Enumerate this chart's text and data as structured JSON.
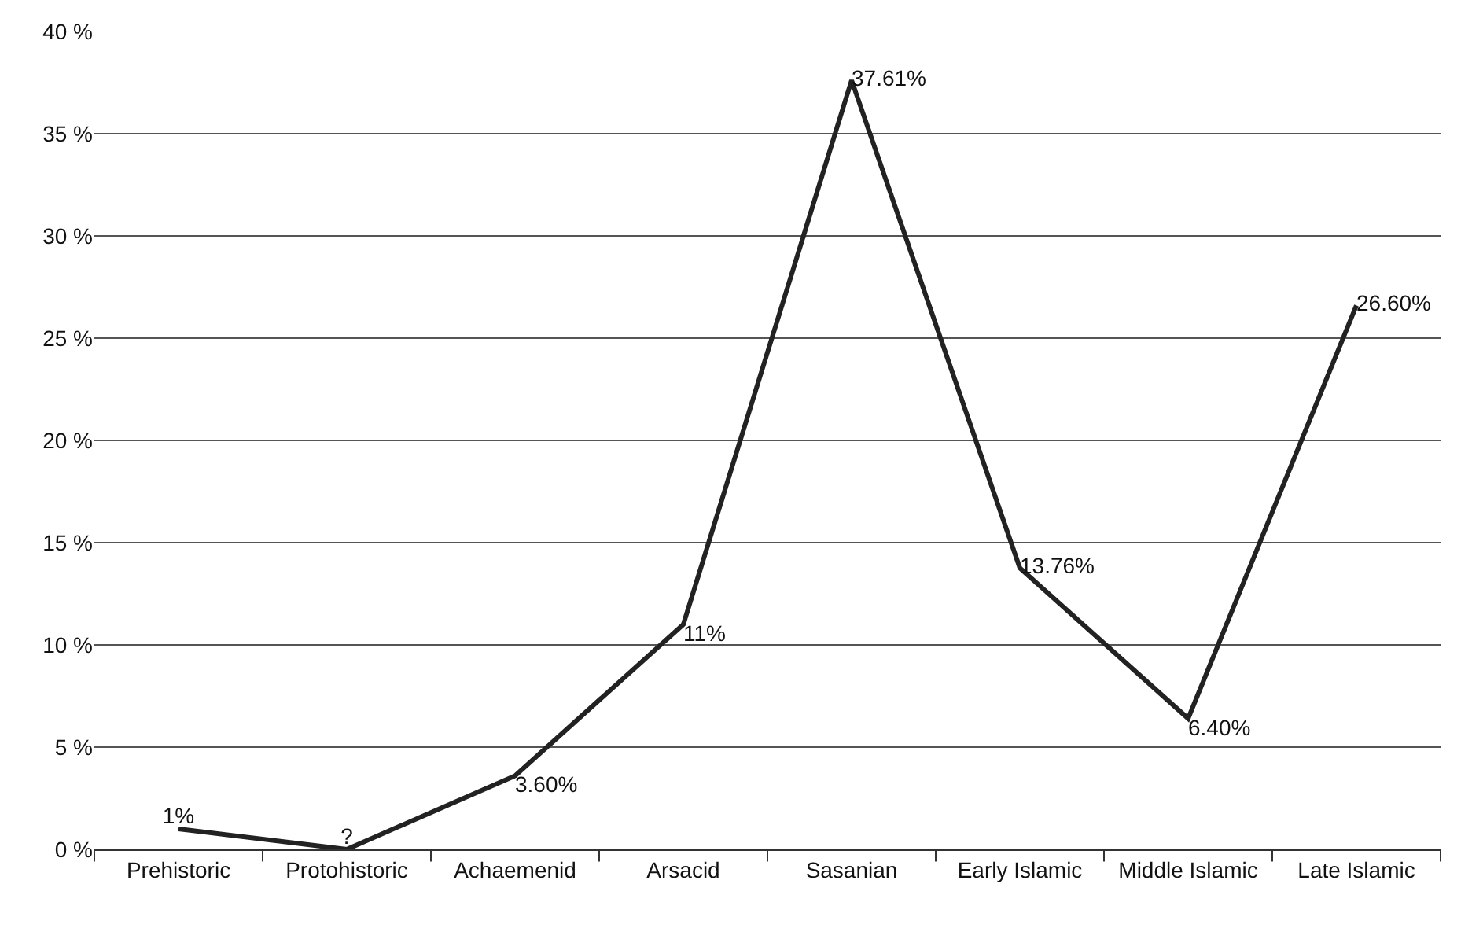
{
  "chart_data": {
    "type": "line",
    "categories": [
      "Prehistoric",
      "Protohistoric",
      "Achaemenid",
      "Arsacid",
      "Sasanian",
      "Early Islamic",
      "Middle Islamic",
      "Late Islamic"
    ],
    "series": [
      {
        "color": "#222222",
        "values": [
          1,
          0,
          3.6,
          11,
          37.61,
          13.76,
          6.4,
          26.6
        ],
        "value_labels": [
          "1%",
          "?",
          "3.60%",
          "11%",
          "37.61%",
          "13.76%",
          "6.40%",
          "26.60%"
        ]
      }
    ],
    "ylim": [
      0,
      40
    ],
    "yticks": [
      {
        "value": 0,
        "label": "0 %"
      },
      {
        "value": 5,
        "label": "5 %"
      },
      {
        "value": 10,
        "label": "10 %"
      },
      {
        "value": 15,
        "label": "15 %"
      },
      {
        "value": 20,
        "label": "20 %"
      },
      {
        "value": 25,
        "label": "25 %"
      },
      {
        "value": 30,
        "label": "30 %"
      },
      {
        "value": 35,
        "label": "35 %"
      },
      {
        "value": 40,
        "label": "40 %"
      }
    ],
    "grid": "y",
    "marker": "none",
    "line_style": "solid",
    "legend": false
  }
}
